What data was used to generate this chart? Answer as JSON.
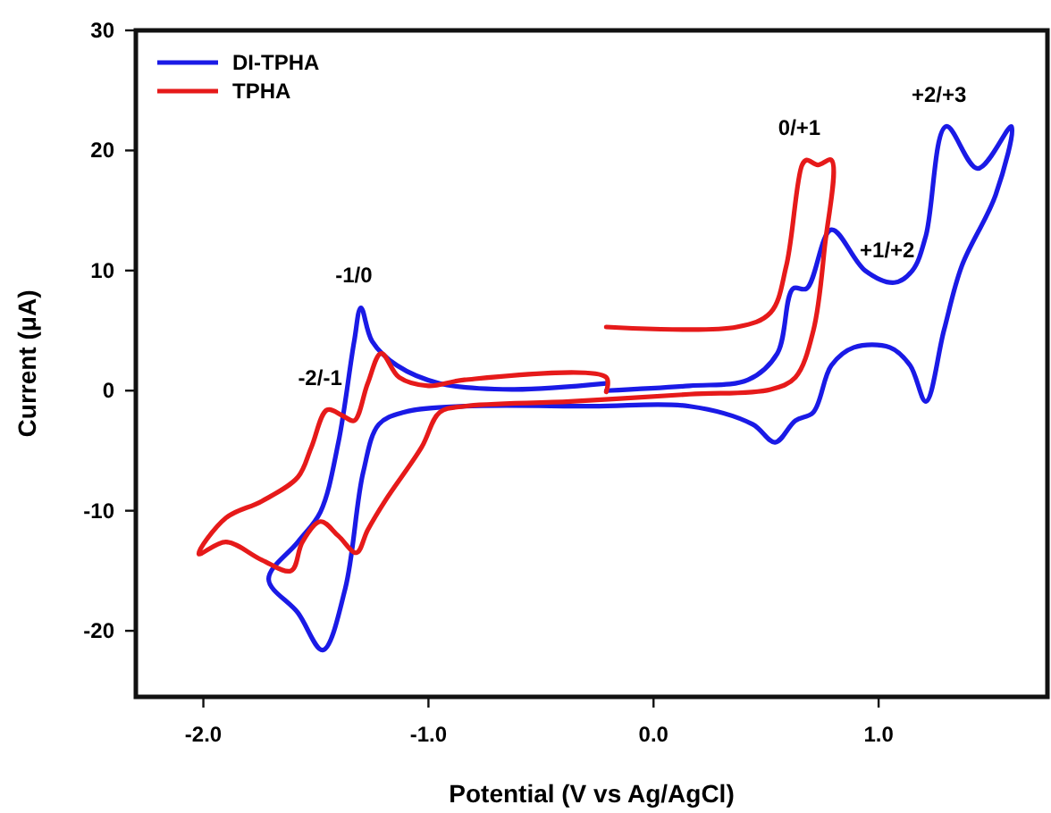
{
  "chart_data": {
    "type": "line",
    "xlabel": "Potential (V vs Ag/AgCl)",
    "ylabel": "Current (μA)",
    "xlim": [
      -2.3,
      1.75
    ],
    "ylim": [
      -25.5,
      30
    ],
    "xticks": [
      {
        "value": -2,
        "label": "-2.0"
      },
      {
        "value": -1,
        "label": "-1.0"
      },
      {
        "value": 0,
        "label": "0.0"
      },
      {
        "value": 1,
        "label": "1.0"
      }
    ],
    "yticks": [
      -20,
      -10,
      0,
      10,
      20,
      30
    ],
    "grid": false,
    "legend": "top left",
    "marker": "none",
    "line_style": "solid",
    "series": [
      {
        "name": "DI-TPHA",
        "color": "#1a1ae6",
        "x": [
          -0.21,
          0.16,
          0.42,
          0.55,
          0.62,
          0.68,
          0.79,
          0.94,
          1.07,
          1.15,
          1.21,
          1.3,
          1.44,
          1.59,
          1.52,
          1.37,
          1.29,
          1.21,
          1.14,
          1.05,
          0.89,
          0.79,
          0.71,
          0.63,
          0.54,
          0.44,
          0.16,
          -0.27,
          -0.84,
          -1.11,
          -1.22,
          -1.29,
          -1.37,
          -1.47,
          -1.58,
          -1.71,
          -1.58,
          -1.48,
          -1.4,
          -1.33,
          -1.3,
          -1.25,
          -1.14,
          -0.95,
          -0.63,
          -0.21
        ],
        "values": [
          0.0,
          0.4,
          0.9,
          3.1,
          8.5,
          8.5,
          13.4,
          10.0,
          9.0,
          10.0,
          12.9,
          22.0,
          18.5,
          22.0,
          16.3,
          10.4,
          5.0,
          -0.9,
          2.1,
          3.6,
          3.6,
          2.1,
          -1.8,
          -2.5,
          -4.3,
          -2.8,
          -1.3,
          -1.3,
          -1.3,
          -1.8,
          -2.8,
          -6.8,
          -16.5,
          -21.6,
          -18.5,
          -15.7,
          -12.6,
          -10.1,
          -4.3,
          4.1,
          6.9,
          4.1,
          2.1,
          0.6,
          0.1,
          0.6
        ]
      },
      {
        "name": "TPHA",
        "color": "#e61a1a",
        "x": [
          -0.21,
          0.37,
          0.52,
          0.59,
          0.66,
          0.68,
          0.73,
          0.79,
          0.76,
          0.71,
          0.63,
          0.52,
          0.16,
          -0.37,
          -0.84,
          -0.95,
          -1.03,
          -1.19,
          -1.27,
          -1.32,
          -1.4,
          -1.48,
          -1.56,
          -1.61,
          -1.74,
          -1.9,
          -2.02,
          -1.9,
          -1.74,
          -1.58,
          -1.52,
          -1.45,
          -1.38,
          -1.33,
          -1.27,
          -1.21,
          -1.13,
          -1.0,
          -0.84,
          -0.21,
          -0.21
        ],
        "values": [
          5.3,
          5.3,
          6.5,
          10.4,
          18.8,
          19.2,
          18.8,
          19.2,
          11.9,
          5.0,
          1.1,
          0.1,
          -0.3,
          -0.9,
          -1.3,
          -1.8,
          -4.7,
          -9.1,
          -11.6,
          -13.5,
          -12.1,
          -10.9,
          -12.6,
          -15.0,
          -14.1,
          -12.6,
          -13.6,
          -10.6,
          -9.2,
          -7.2,
          -4.7,
          -1.6,
          -2.1,
          -2.5,
          0.6,
          3.1,
          1.1,
          0.4,
          0.9,
          1.1,
          -0.1
        ]
      }
    ],
    "annotations": [
      {
        "text": "-1/0",
        "x": -1.3,
        "y": 6.9
      },
      {
        "text": "-2/-1",
        "x": -1.45,
        "y": -1.6
      },
      {
        "text": "0/+1",
        "x": 0.68,
        "y": 19.2
      },
      {
        "text": "+1/+2",
        "x": 1.07,
        "y": 9.0
      },
      {
        "text": "+2/+3",
        "x": 1.3,
        "y": 22.0
      }
    ]
  }
}
